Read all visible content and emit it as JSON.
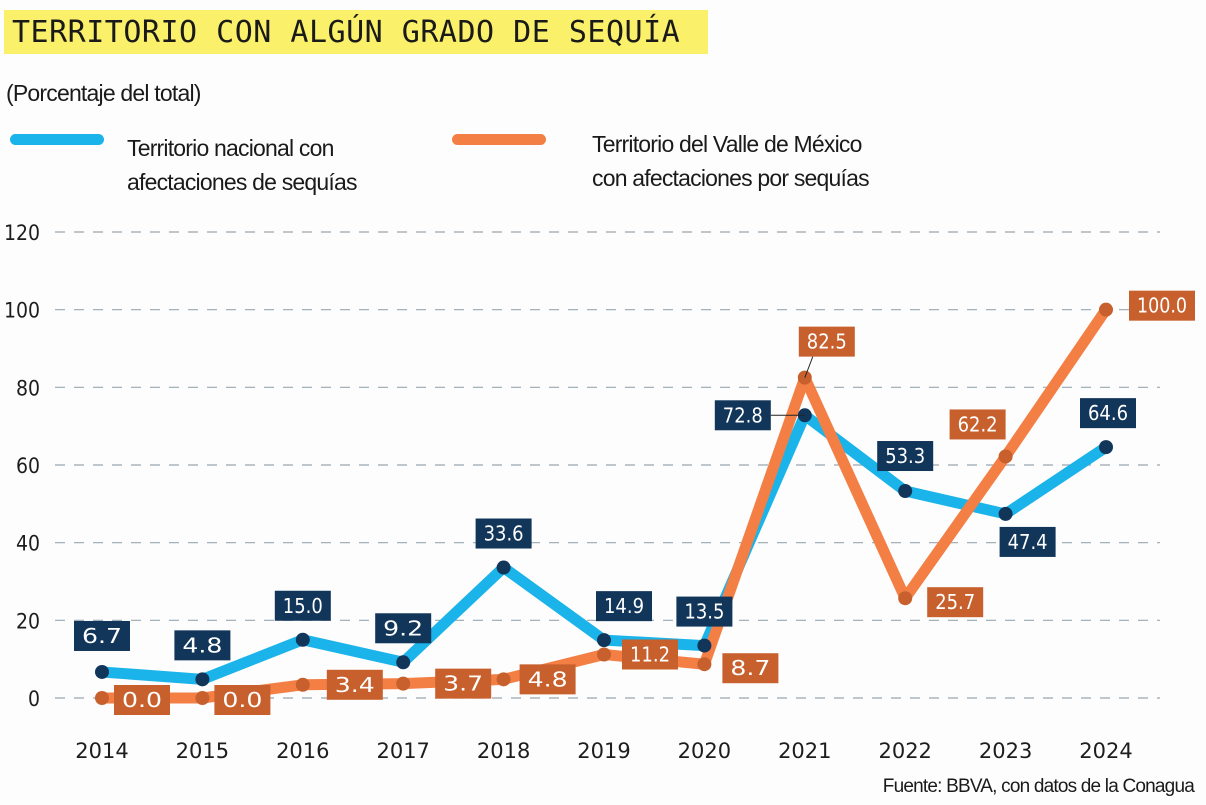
{
  "header": {
    "title": "TERRITORIO CON ALGÚN GRADO DE SEQUÍA",
    "subtitle": "(Porcentaje del total)"
  },
  "legend": [
    {
      "line1": "Territorio nacional con",
      "line2": "afectaciones de sequías",
      "color": "#1ab3ea"
    },
    {
      "line1": "Territorio del Valle de México",
      "line2": "con afectaciones por sequías",
      "color": "#f37f45"
    }
  ],
  "footer": {
    "source": "Fuente: BBVA, con datos de la Conagua"
  },
  "colors": {
    "national_line": "#1ab3ea",
    "national_label": "#12355a",
    "valle_line": "#f37f45",
    "valle_label": "#c8602e",
    "grid": "#9aa7b0"
  },
  "chart_data": {
    "type": "line",
    "title": "TERRITORIO CON ALGÚN GRADO DE SEQUÍA",
    "subtitle": "(Porcentaje del total)",
    "xlabel": "",
    "ylabel": "",
    "x": [
      "2014",
      "2015",
      "2016",
      "2017",
      "2018",
      "2019",
      "2020",
      "2021",
      "2022",
      "2023",
      "2024"
    ],
    "ylim": [
      0,
      120
    ],
    "yticks": [
      0,
      20,
      40,
      60,
      80,
      100,
      120
    ],
    "grid": true,
    "legend_position": "top",
    "series": [
      {
        "name": "Territorio nacional con afectaciones de sequías",
        "values": [
          6.7,
          4.8,
          15.0,
          9.2,
          33.6,
          14.9,
          13.5,
          72.8,
          53.3,
          47.4,
          64.6
        ],
        "labels": [
          "6.7",
          "4.8",
          "15.0",
          "9.2",
          "33.6",
          "14.9",
          "13.5",
          "72.8",
          "53.3",
          "47.4",
          "64.6"
        ]
      },
      {
        "name": "Territorio del Valle de México con afectaciones por sequías",
        "values": [
          0.0,
          0.0,
          3.4,
          3.7,
          4.8,
          11.2,
          8.7,
          82.5,
          25.7,
          62.2,
          100.0
        ],
        "labels": [
          "0.0",
          "0.0",
          "3.4",
          "3.7",
          "4.8",
          "11.2",
          "8.7",
          "82.5",
          "25.7",
          "62.2",
          "100.0"
        ]
      }
    ],
    "source": "Fuente: BBVA, con datos de la Conagua"
  }
}
